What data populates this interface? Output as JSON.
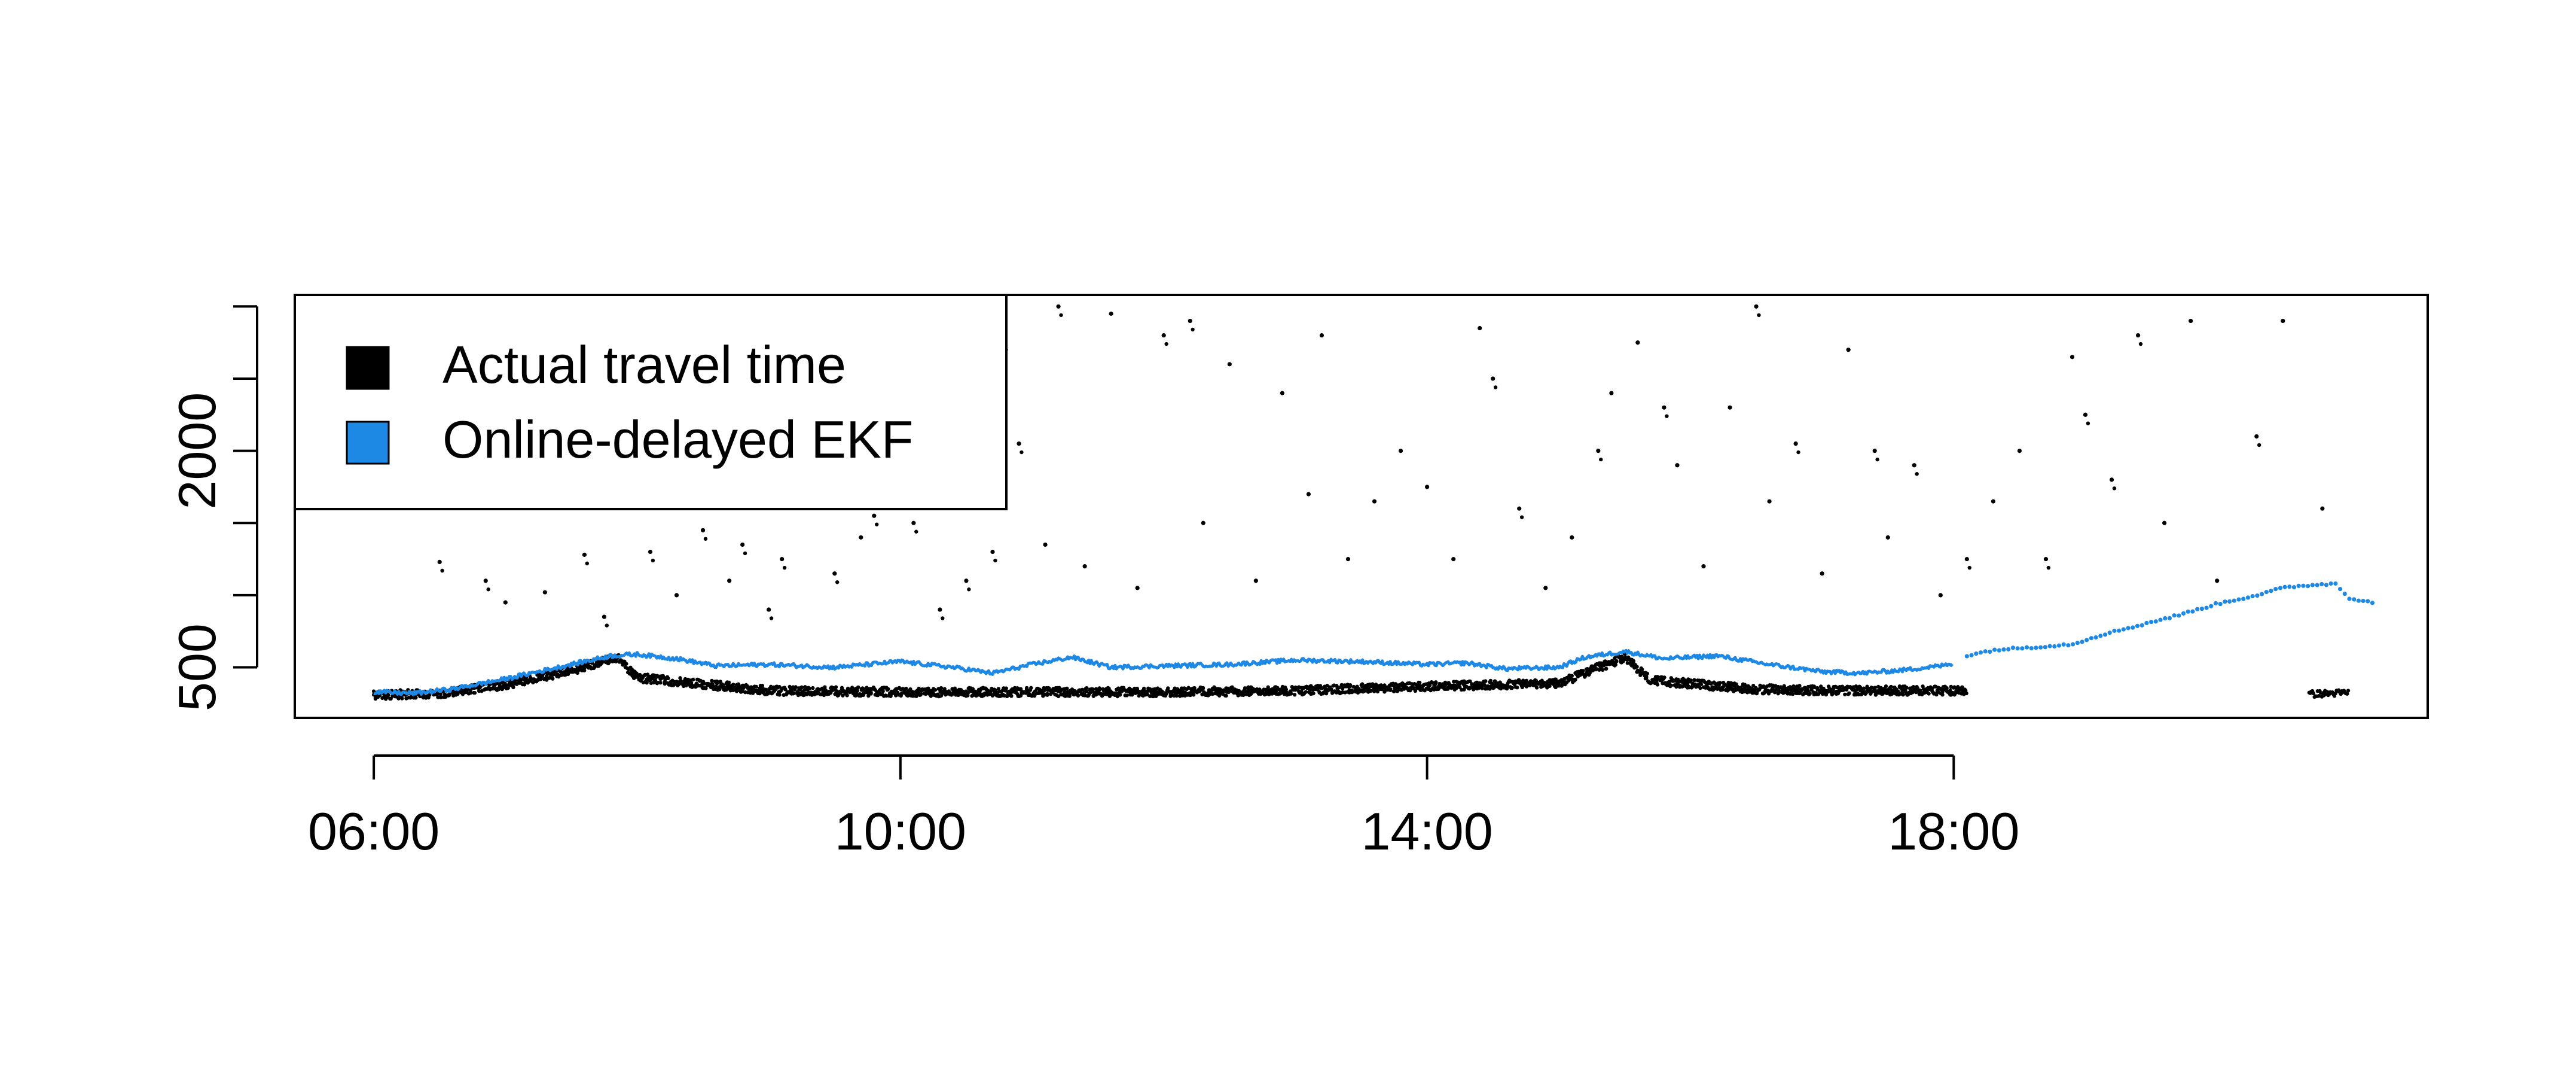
{
  "chart_data": {
    "type": "scatter",
    "title": "",
    "xlabel": "",
    "ylabel": "",
    "x_ticks": [
      "06:00",
      "10:00",
      "14:00",
      "18:00"
    ],
    "x_tick_hours": [
      6,
      10,
      14,
      18
    ],
    "xlim_hours": [
      5.4,
      21.6
    ],
    "y_tick_values": [
      500,
      1000,
      1500,
      2000,
      2500,
      3000
    ],
    "y_tick_labels": [
      "500",
      "",
      "",
      "2000",
      "",
      ""
    ],
    "ylim": [
      150,
      3080
    ],
    "grid": false,
    "legend": {
      "position": "top-left"
    },
    "series": [
      {
        "name": "Actual travel time",
        "color": "#000000",
        "marker": "point",
        "baseline": [
          [
            6.0,
            300
          ],
          [
            6.5,
            310
          ],
          [
            7.0,
            370
          ],
          [
            7.5,
            470
          ],
          [
            7.85,
            560
          ],
          [
            8.0,
            420
          ],
          [
            9.0,
            330
          ],
          [
            10.0,
            320
          ],
          [
            12.0,
            320
          ],
          [
            13.0,
            330
          ],
          [
            14.0,
            360
          ],
          [
            15.0,
            380
          ],
          [
            15.5,
            560
          ],
          [
            15.7,
            400
          ],
          [
            16.5,
            340
          ],
          [
            17.0,
            330
          ],
          [
            18.1,
            330
          ]
        ],
        "late_segment": [
          [
            20.7,
            310
          ],
          [
            21.0,
            320
          ]
        ],
        "outlier_points": [
          [
            6.5,
            1230
          ],
          [
            6.85,
            1100
          ],
          [
            7.0,
            950
          ],
          [
            7.3,
            1020
          ],
          [
            7.6,
            1280
          ],
          [
            7.75,
            850
          ],
          [
            8.1,
            1300
          ],
          [
            8.3,
            1000
          ],
          [
            8.5,
            1450
          ],
          [
            8.7,
            1100
          ],
          [
            8.8,
            1350
          ],
          [
            9.0,
            900
          ],
          [
            9.1,
            1250
          ],
          [
            9.3,
            1700
          ],
          [
            9.5,
            1150
          ],
          [
            9.6,
            2200
          ],
          [
            9.7,
            1400
          ],
          [
            9.8,
            1550
          ],
          [
            10.1,
            1500
          ],
          [
            10.3,
            900
          ],
          [
            10.5,
            1100
          ],
          [
            10.6,
            2600
          ],
          [
            10.7,
            1300
          ],
          [
            10.8,
            2700
          ],
          [
            10.9,
            2050
          ],
          [
            11.1,
            1350
          ],
          [
            11.2,
            3000
          ],
          [
            11.4,
            1200
          ],
          [
            11.6,
            2950
          ],
          [
            11.8,
            1050
          ],
          [
            12.0,
            2800
          ],
          [
            12.2,
            2900
          ],
          [
            12.3,
            1500
          ],
          [
            12.5,
            2600
          ],
          [
            12.7,
            1100
          ],
          [
            12.9,
            2400
          ],
          [
            13.1,
            1700
          ],
          [
            13.2,
            2800
          ],
          [
            13.4,
            1250
          ],
          [
            13.6,
            1650
          ],
          [
            13.8,
            2000
          ],
          [
            14.0,
            1750
          ],
          [
            14.2,
            1250
          ],
          [
            14.4,
            2850
          ],
          [
            14.5,
            2500
          ],
          [
            14.7,
            1600
          ],
          [
            14.9,
            1050
          ],
          [
            15.1,
            1400
          ],
          [
            15.3,
            2000
          ],
          [
            15.4,
            2400
          ],
          [
            15.6,
            2750
          ],
          [
            15.8,
            2300
          ],
          [
            15.9,
            1900
          ],
          [
            16.1,
            1200
          ],
          [
            16.3,
            2300
          ],
          [
            16.5,
            3000
          ],
          [
            16.6,
            1650
          ],
          [
            16.8,
            2050
          ],
          [
            17.0,
            1150
          ],
          [
            17.2,
            2700
          ],
          [
            17.4,
            2000
          ],
          [
            17.5,
            1400
          ],
          [
            17.7,
            1900
          ],
          [
            17.9,
            1000
          ],
          [
            18.1,
            1250
          ],
          [
            18.3,
            1650
          ],
          [
            18.5,
            2000
          ],
          [
            18.7,
            1250
          ],
          [
            18.9,
            2650
          ],
          [
            19.0,
            2250
          ],
          [
            19.2,
            1800
          ],
          [
            19.4,
            2800
          ],
          [
            19.6,
            1500
          ],
          [
            19.8,
            2900
          ],
          [
            20.0,
            1100
          ],
          [
            20.3,
            2100
          ],
          [
            20.5,
            2900
          ],
          [
            20.8,
            1600
          ]
        ]
      },
      {
        "name": "Online-delayed EKF",
        "color": "#1e88e5",
        "marker": "line",
        "line_points": [
          [
            6.0,
            330
          ],
          [
            6.3,
            320
          ],
          [
            6.6,
            350
          ],
          [
            7.0,
            420
          ],
          [
            7.5,
            520
          ],
          [
            7.8,
            580
          ],
          [
            8.0,
            590
          ],
          [
            8.3,
            560
          ],
          [
            8.6,
            510
          ],
          [
            9.0,
            520
          ],
          [
            9.5,
            500
          ],
          [
            10.0,
            540
          ],
          [
            10.4,
            500
          ],
          [
            10.7,
            460
          ],
          [
            11.0,
            520
          ],
          [
            11.3,
            570
          ],
          [
            11.6,
            500
          ],
          [
            12.0,
            510
          ],
          [
            12.5,
            520
          ],
          [
            13.0,
            550
          ],
          [
            13.5,
            540
          ],
          [
            14.0,
            520
          ],
          [
            14.3,
            530
          ],
          [
            14.6,
            490
          ],
          [
            15.0,
            500
          ],
          [
            15.2,
            570
          ],
          [
            15.5,
            610
          ],
          [
            15.8,
            560
          ],
          [
            16.2,
            580
          ],
          [
            16.6,
            520
          ],
          [
            17.0,
            470
          ],
          [
            17.3,
            460
          ],
          [
            17.6,
            480
          ],
          [
            17.9,
            510
          ],
          [
            18.0,
            530
          ]
        ],
        "sparse_points": [
          [
            18.1,
            580
          ],
          [
            18.3,
            620
          ],
          [
            18.6,
            640
          ],
          [
            18.9,
            660
          ],
          [
            19.1,
            720
          ],
          [
            19.4,
            790
          ],
          [
            19.7,
            860
          ],
          [
            20.0,
            940
          ],
          [
            20.3,
            1000
          ],
          [
            20.5,
            1050
          ],
          [
            20.7,
            1070
          ],
          [
            20.9,
            1080
          ],
          [
            21.0,
            980
          ],
          [
            21.2,
            950
          ]
        ]
      }
    ]
  }
}
